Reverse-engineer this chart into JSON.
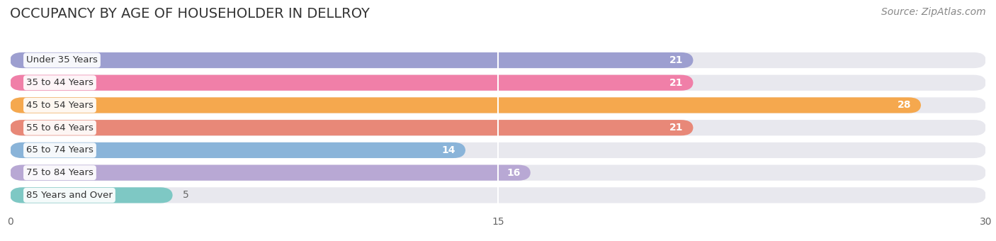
{
  "title": "OCCUPANCY BY AGE OF HOUSEHOLDER IN DELLROY",
  "source": "Source: ZipAtlas.com",
  "categories": [
    "Under 35 Years",
    "35 to 44 Years",
    "45 to 54 Years",
    "55 to 64 Years",
    "65 to 74 Years",
    "75 to 84 Years",
    "85 Years and Over"
  ],
  "values": [
    21,
    21,
    28,
    21,
    14,
    16,
    5
  ],
  "bar_colors": [
    "#9d9fd0",
    "#f07fa8",
    "#f5a84e",
    "#e88878",
    "#8ab4d9",
    "#b8a8d4",
    "#7ec8c4"
  ],
  "bar_bg_color": "#e8e8ee",
  "xlim": [
    0,
    30
  ],
  "xticks": [
    0,
    15,
    30
  ],
  "title_fontsize": 14,
  "source_fontsize": 10,
  "label_fontsize": 9.5,
  "value_fontsize": 10,
  "bar_height": 0.7,
  "background_color": "#ffffff",
  "grid_color": "#ffffff",
  "value_inside_threshold": 10
}
